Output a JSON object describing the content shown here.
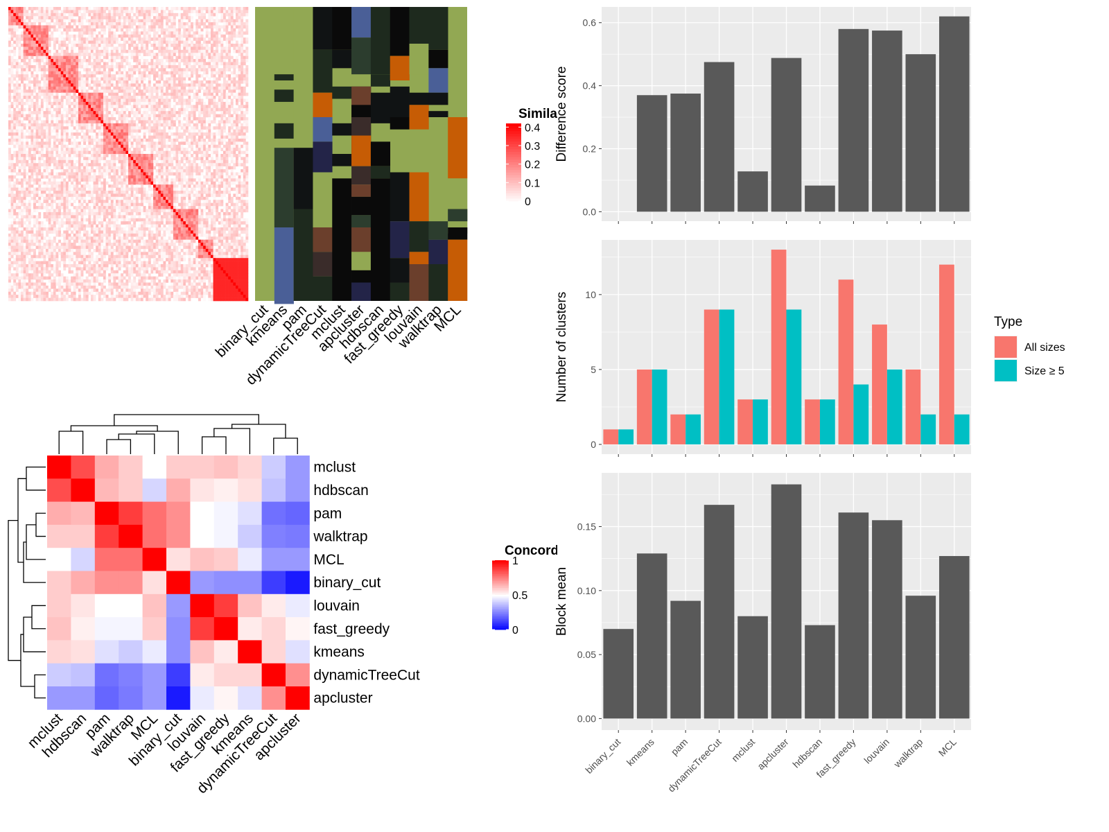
{
  "methods": [
    "binary_cut",
    "kmeans",
    "pam",
    "dynamicTreeCut",
    "mclust",
    "apcluster",
    "hdbscan",
    "fast_greedy",
    "louvain",
    "walktrap",
    "MCL"
  ],
  "similarity_legend": {
    "title": "Similarity",
    "ticks": [
      "0.4",
      "0.3",
      "0.2",
      "0.1",
      "0"
    ]
  },
  "concordance_legend": {
    "title": "Concordance",
    "ticks": [
      "1",
      "0.5",
      "0"
    ]
  },
  "bar_colors": {
    "gray": "#595959",
    "all_sizes": "#F8766D",
    "size_ge5": "#00BFC4",
    "panel_bg": "#EBEBEB",
    "grid": "#ffffff"
  },
  "cluster_palette": [
    "#92A853",
    "#101314",
    "#1E2A1E",
    "#2C3D2E",
    "#4A5F97",
    "#232448",
    "#C65C05",
    "#3A2C2A",
    "#6B3F2C",
    "#7336FF",
    "#0A0A0A"
  ],
  "chart_data": [
    {
      "type": "heatmap",
      "title": "",
      "legend_title": "Similarity",
      "scale": {
        "min": 0,
        "max": 0.4,
        "ticks": [
          0,
          0.1,
          0.2,
          0.3,
          0.4
        ],
        "low_color": "#FFFFFF",
        "high_color": "#FF0000"
      },
      "clusters_along_diagonal": 9,
      "dendrogram": false
    },
    {
      "type": "heatmap",
      "title": "",
      "columns": [
        "binary_cut",
        "kmeans",
        "pam",
        "dynamicTreeCut",
        "mclust",
        "apcluster",
        "hdbscan",
        "fast_greedy",
        "louvain",
        "walktrap",
        "MCL"
      ]
    },
    {
      "type": "heatmap",
      "title": "",
      "legend_title": "Concordance",
      "rows": [
        "mclust",
        "hdbscan",
        "pam",
        "walktrap",
        "MCL",
        "binary_cut",
        "louvain",
        "fast_greedy",
        "kmeans",
        "dynamicTreeCut",
        "apcluster"
      ],
      "columns": [
        "mclust",
        "hdbscan",
        "pam",
        "walktrap",
        "MCL",
        "binary_cut",
        "louvain",
        "fast_greedy",
        "kmeans",
        "dynamicTreeCut",
        "apcluster"
      ],
      "scale": {
        "min": 0,
        "max": 1,
        "ticks": [
          0,
          0.5,
          1
        ],
        "low_color": "#0000FF",
        "mid_color": "#FFFFFF",
        "high_color": "#FF0000"
      },
      "values": [
        [
          1.0,
          0.85,
          0.66,
          0.6,
          0.5,
          0.6,
          0.6,
          0.62,
          0.58,
          0.4,
          0.3
        ],
        [
          0.85,
          1.0,
          0.64,
          0.6,
          0.42,
          0.66,
          0.55,
          0.53,
          0.56,
          0.38,
          0.3
        ],
        [
          0.66,
          0.64,
          1.0,
          0.88,
          0.78,
          0.72,
          0.5,
          0.48,
          0.44,
          0.22,
          0.2
        ],
        [
          0.6,
          0.6,
          0.88,
          1.0,
          0.78,
          0.72,
          0.5,
          0.48,
          0.4,
          0.25,
          0.24
        ],
        [
          0.5,
          0.42,
          0.78,
          0.78,
          1.0,
          0.56,
          0.62,
          0.6,
          0.46,
          0.3,
          0.3
        ],
        [
          0.6,
          0.66,
          0.72,
          0.72,
          0.56,
          1.0,
          0.3,
          0.28,
          0.28,
          0.12,
          0.05
        ],
        [
          0.6,
          0.55,
          0.5,
          0.5,
          0.62,
          0.3,
          1.0,
          0.88,
          0.62,
          0.54,
          0.46
        ],
        [
          0.62,
          0.53,
          0.48,
          0.48,
          0.6,
          0.28,
          0.88,
          1.0,
          0.54,
          0.58,
          0.52
        ],
        [
          0.58,
          0.56,
          0.44,
          0.4,
          0.46,
          0.28,
          0.62,
          0.54,
          1.0,
          0.58,
          0.44
        ],
        [
          0.4,
          0.38,
          0.22,
          0.25,
          0.3,
          0.12,
          0.54,
          0.58,
          0.58,
          1.0,
          0.72
        ],
        [
          0.3,
          0.3,
          0.2,
          0.24,
          0.3,
          0.05,
          0.46,
          0.52,
          0.44,
          0.72,
          1.0
        ]
      ],
      "dendrogram": true
    },
    {
      "type": "bar",
      "title": "",
      "xlabel": "",
      "ylabel": "Difference score",
      "categories": [
        "binary_cut",
        "kmeans",
        "pam",
        "dynamicTreeCut",
        "mclust",
        "apcluster",
        "hdbscan",
        "fast_greedy",
        "louvain",
        "walktrap",
        "MCL"
      ],
      "values": [
        0,
        0.37,
        0.375,
        0.475,
        0.128,
        0.488,
        0.083,
        0.58,
        0.575,
        0.5,
        0.62
      ],
      "ylim": [
        -0.03,
        0.65
      ],
      "yticks": [
        0.0,
        0.2,
        0.4,
        0.6
      ],
      "ytick_labels": [
        "0.0",
        "0.2",
        "0.4",
        "0.6"
      ],
      "grid": true
    },
    {
      "type": "bar",
      "title": "",
      "xlabel": "",
      "ylabel": "Number of clusters",
      "categories": [
        "binary_cut",
        "kmeans",
        "pam",
        "dynamicTreeCut",
        "mclust",
        "apcluster",
        "hdbscan",
        "fast_greedy",
        "louvain",
        "walktrap",
        "MCL"
      ],
      "series": [
        {
          "name": "All sizes",
          "values": [
            1,
            5,
            2,
            9,
            3,
            13,
            3,
            11,
            8,
            5,
            12
          ]
        },
        {
          "name": "Size ≥ 5",
          "values": [
            1,
            5,
            2,
            9,
            3,
            9,
            3,
            4,
            5,
            2,
            2
          ]
        }
      ],
      "ylim": [
        -0.65,
        13.65
      ],
      "yticks": [
        0,
        5,
        10
      ],
      "ytick_labels": [
        "0",
        "5",
        "10"
      ],
      "legend_title": "Type",
      "legend_position": "right",
      "grid": true
    },
    {
      "type": "bar",
      "title": "",
      "xlabel": "",
      "ylabel": "Block mean",
      "categories": [
        "binary_cut",
        "kmeans",
        "pam",
        "dynamicTreeCut",
        "mclust",
        "apcluster",
        "hdbscan",
        "fast_greedy",
        "louvain",
        "walktrap",
        "MCL"
      ],
      "values": [
        0.07,
        0.129,
        0.092,
        0.167,
        0.08,
        0.183,
        0.073,
        0.161,
        0.155,
        0.096,
        0.127
      ],
      "ylim": [
        -0.009,
        0.192
      ],
      "yticks": [
        0.0,
        0.05,
        0.1,
        0.15
      ],
      "ytick_labels": [
        "0.00",
        "0.05",
        "0.10",
        "0.15"
      ],
      "grid": true
    }
  ]
}
